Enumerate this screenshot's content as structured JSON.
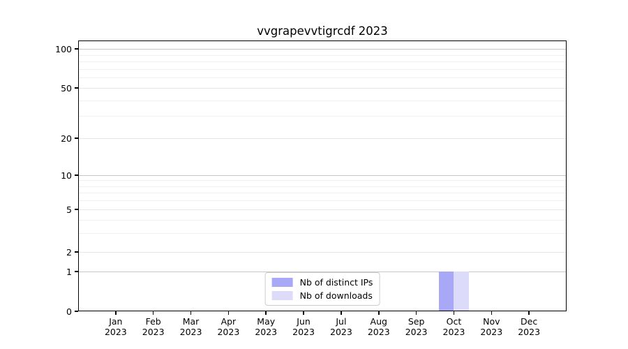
{
  "window": {
    "background": "#ffffff"
  },
  "chart_data": {
    "type": "bar",
    "title": "vvgrapevvtigrcdf 2023",
    "categories": [
      "Jan 2023",
      "Feb 2023",
      "Mar 2023",
      "Apr 2023",
      "May 2023",
      "Jun 2023",
      "Jul 2023",
      "Aug 2023",
      "Sep 2023",
      "Oct 2023",
      "Nov 2023",
      "Dec 2023"
    ],
    "series": [
      {
        "name": "Nb of distinct IPs",
        "color": "#a8a8f7",
        "values": [
          0,
          0,
          0,
          0,
          0,
          0,
          0,
          0,
          0,
          1,
          0,
          0
        ]
      },
      {
        "name": "Nb of downloads",
        "color": "#dcdcfa",
        "values": [
          0,
          0,
          0,
          0,
          0,
          0,
          0,
          0,
          0,
          1,
          0,
          0
        ]
      }
    ],
    "xlabel": "",
    "ylabel": "",
    "y_axis": {
      "scale": "symlog",
      "tick_values": [
        0,
        1,
        2,
        5,
        10,
        20,
        50,
        100
      ],
      "tick_labels": [
        "0",
        "1",
        "2",
        "5",
        "10",
        "20",
        "50",
        "100"
      ]
    },
    "grid": {
      "horizontal": true,
      "major_color": "#c6c6c6",
      "mid_color": "#e7e7e7",
      "minor_color": "#f0f0f0"
    },
    "legend": {
      "position": "lower center"
    },
    "axis_color": "#000000"
  }
}
